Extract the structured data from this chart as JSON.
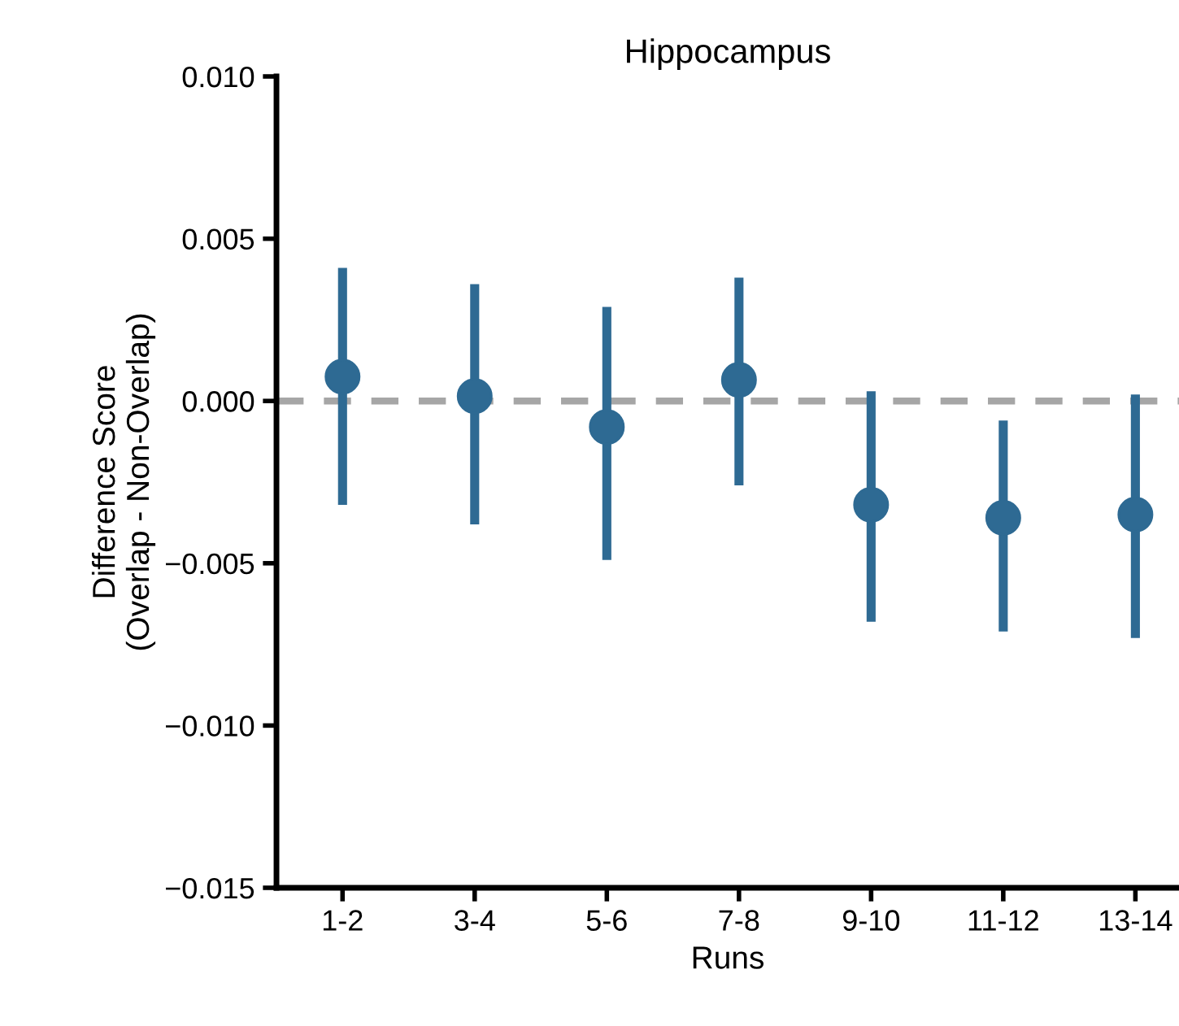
{
  "chart_data": {
    "type": "scatter",
    "title": "Hippocampus",
    "xlabel": "Runs",
    "ylabel": "Difference Score\n(Overlap - Non-Overlap)",
    "categories": [
      "1-2",
      "3-4",
      "5-6",
      "7-8",
      "9-10",
      "11-12",
      "13-14"
    ],
    "series": [
      {
        "color": "#2e6a93",
        "values": [
          0.00075,
          0.00015,
          -0.0008,
          0.00065,
          -0.0032,
          -0.0036,
          -0.0035
        ],
        "errors": [
          [
            -0.0032,
            0.0041
          ],
          [
            -0.0038,
            0.0036
          ],
          [
            -0.0049,
            0.0029
          ],
          [
            -0.0026,
            0.0038
          ],
          [
            -0.0068,
            0.0003
          ],
          [
            -0.0071,
            -0.0006
          ],
          [
            -0.0073,
            0.0002
          ]
        ]
      }
    ],
    "ylim": [
      -0.015,
      0.01
    ],
    "yticks": [
      {
        "value": 0.01,
        "label": "0.010"
      },
      {
        "value": 0.005,
        "label": "0.005"
      },
      {
        "value": 0,
        "label": "0.000"
      },
      {
        "value": -0.005,
        "label": "−0.005"
      },
      {
        "value": -0.01,
        "label": "−0.010"
      },
      {
        "value": -0.015,
        "label": "−0.015"
      }
    ],
    "ref_lines": [
      {
        "axis": "y",
        "value": 0,
        "color": "#a6a6a6",
        "line_style": "dashed"
      }
    ],
    "marker": "circle",
    "grid": false,
    "legend": false
  }
}
